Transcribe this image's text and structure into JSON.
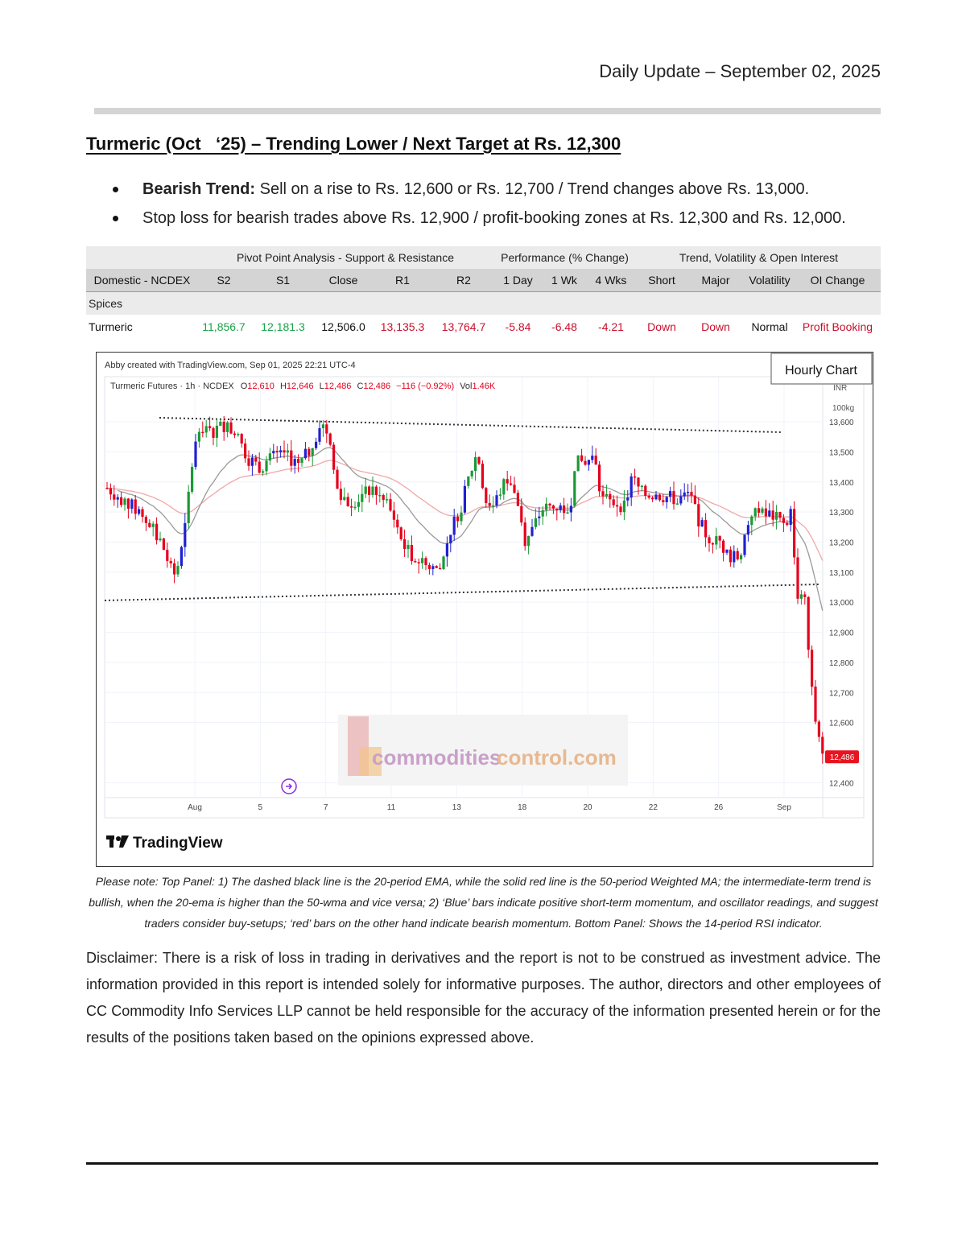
{
  "header": {
    "date_line": "Daily Update – September 02, 2025"
  },
  "headline": "Turmeric (Oct   ‘25) – Trending Lower / Next Target at Rs. 12,300",
  "bullets": {
    "b1_strong": "Bearish Trend:",
    "b1_text": " Sell on a rise to Rs. 12,600 or Rs. 12,700 / Trend changes above Rs. 13,000.",
    "b2_text": "Stop loss for bearish trades above Rs. 12,900 / profit-booking zones at Rs. 12,300 and Rs. 12,000."
  },
  "table": {
    "group_headers": {
      "pivot": "Pivot Point Analysis - Support & Resistance",
      "performance": "Performance (% Change)",
      "trend": "Trend, Volatility & Open Interest"
    },
    "columns": [
      "Domestic - NCDEX",
      "S2",
      "S1",
      "Close",
      "R1",
      "R2",
      "1 Day",
      "1 Wk",
      "4 Wks",
      "Short",
      "Major",
      "Volatility",
      "OI Change"
    ],
    "category": "Spices",
    "row": [
      "Turmeric",
      "11,856.7",
      "12,181.3",
      "12,506.0",
      "13,135.3",
      "13,764.7",
      "-5.84",
      "-6.48",
      "-4.21",
      "Down",
      "Down",
      "Normal",
      "Profit Booking"
    ],
    "colors": {
      "green": "#1aa34a",
      "red": "#c8102e"
    }
  },
  "chart_data": {
    "type": "candlestick",
    "badge": "Hourly Chart",
    "created_line": "Abby created with TradingView.com, Sep 01, 2025 22:21 UTC-4",
    "legend": {
      "symbol": "Turmeric Futures · 1h · NCDEX",
      "o_label": "O",
      "o": "12,610",
      "h_label": "H",
      "h": "12,646",
      "l_label": "L",
      "l": "12,486",
      "c_label": "C",
      "c": "12,486",
      "change": "−116 (−0.92%)",
      "vol_label": "Vol",
      "vol": "1.46K"
    },
    "y_unit_top": "INR",
    "y_unit_bottom": "100kg",
    "ylim": [
      12350,
      13750
    ],
    "y_ticks": [
      13600,
      13500,
      13400,
      13300,
      13200,
      13100,
      13000,
      12900,
      12800,
      12700,
      12600,
      12400
    ],
    "y_tick_labels": [
      "13,600",
      "13,500",
      "13,400",
      "13,300",
      "13,200",
      "13,100",
      "13,000",
      "12,900",
      "12,800",
      "12,700",
      "12,600",
      "12,400"
    ],
    "last_price": 12486,
    "last_price_label": "12,486",
    "x_tick_labels": [
      "Aug",
      "5",
      "7",
      "11",
      "13",
      "18",
      "20",
      "22",
      "26",
      "Sep"
    ],
    "watermark": {
      "part1": "commodities",
      "part2": "control.com"
    },
    "brand": "TradingView",
    "colors": {
      "up": "#1a9a34",
      "down": "#e5001c",
      "blue": "#2020d0",
      "ema": "#9a9a9a",
      "wma": "#f0a8a8",
      "label_bg": "#e8141f"
    }
  },
  "caption_text": "Please note: Top Panel: 1) The dashed black line is the 20-period EMA, while the solid red line is the 50-period Weighted MA; the intermediate-term trend is bullish, when the 20-ema is higher than the 50-wma and vice versa; 2)   ‘Blue’   bars indicate positive short-term momentum, and oscillator readings, and suggest traders consider buy-setups;   ‘red’   bars on the other hand indicate bearish momentum. Bottom Panel: Shows the 14-period RSI indicator.",
  "disclaimer_text": "Disclaimer: There is a risk of loss in trading in derivatives and the report is not to be construed as investment advice. The information provided in this report is intended solely for informative purposes. The author, directors and other employees of CC Commodity Info Services LLP cannot be held responsible for the accuracy of the information presented herein or for the results of the positions taken based on the opinions expressed above."
}
